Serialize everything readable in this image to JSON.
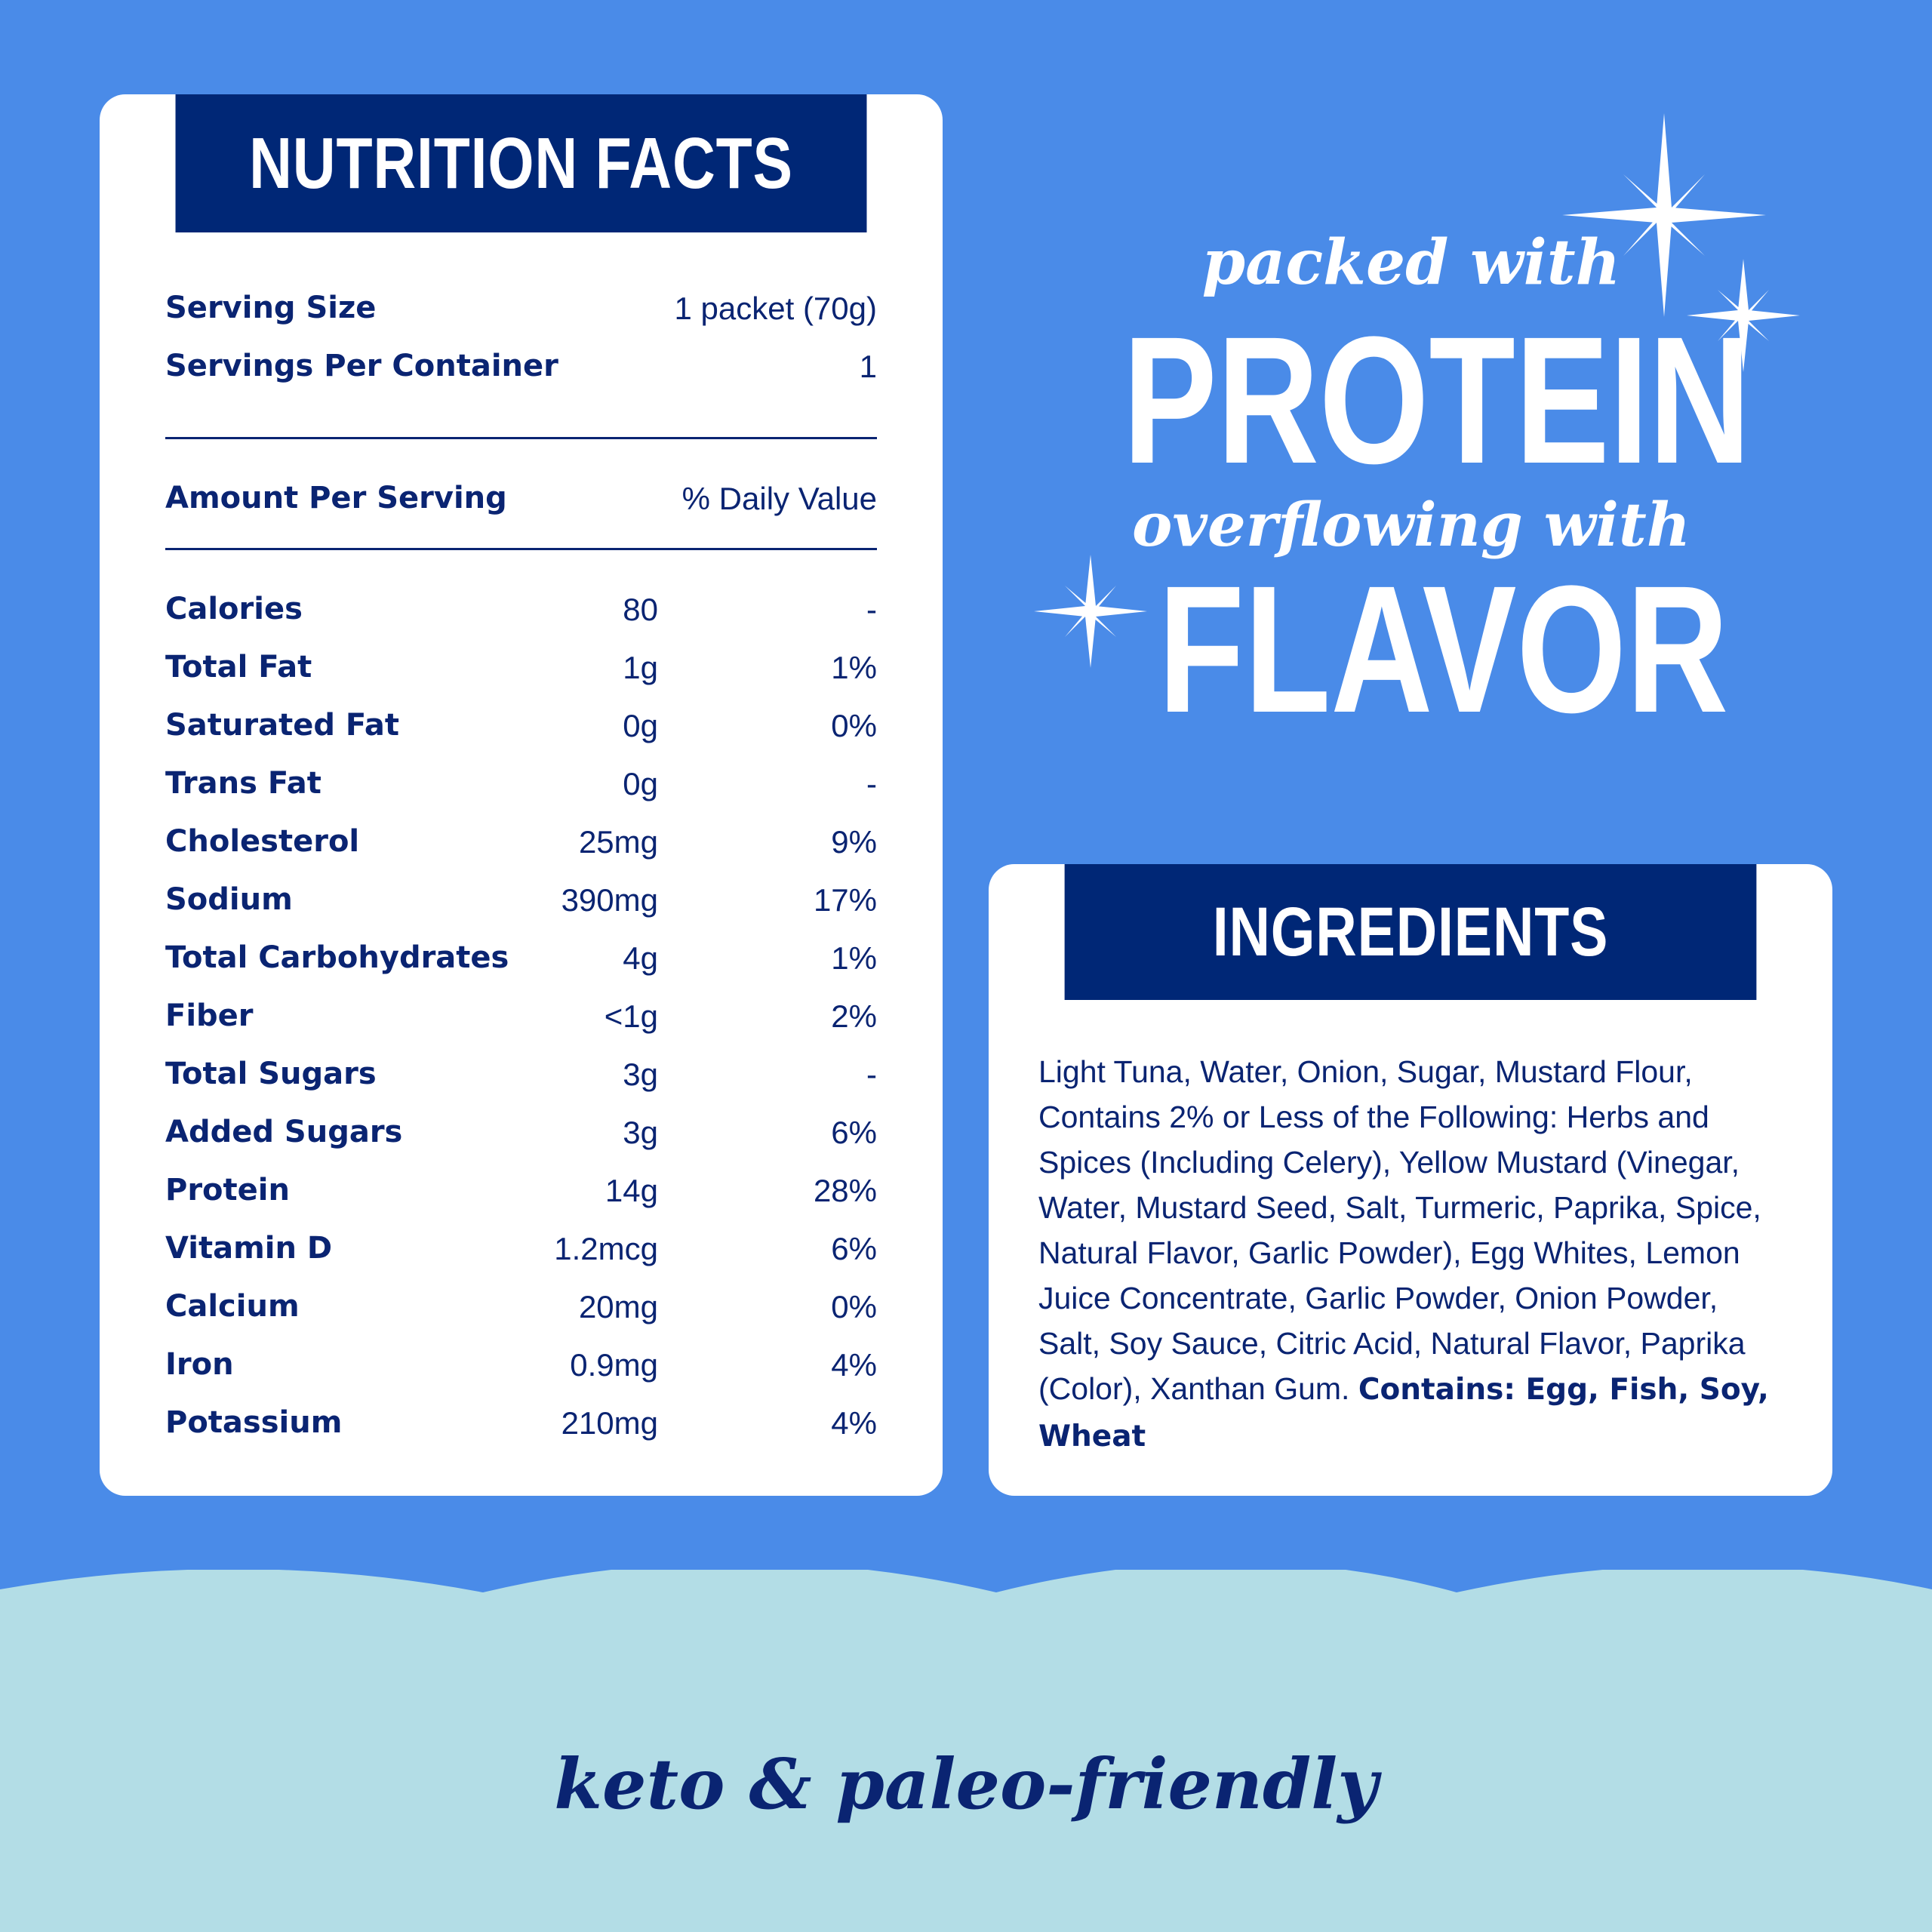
{
  "nutrition": {
    "title": "NUTRITION FACTS",
    "serving_size_label": "Serving Size",
    "serving_size_value": "1 packet (70g)",
    "servings_label": "Servings Per Container",
    "servings_value": "1",
    "amount_label": "Amount Per Serving",
    "dv_label": "% Daily Value",
    "rows": [
      {
        "label": "Calories",
        "amount": "80",
        "dv": "-"
      },
      {
        "label": "Total Fat",
        "amount": "1g",
        "dv": "1%"
      },
      {
        "label": "Saturated Fat",
        "amount": "0g",
        "dv": "0%"
      },
      {
        "label": "Trans Fat",
        "amount": "0g",
        "dv": "-"
      },
      {
        "label": "Cholesterol",
        "amount": "25mg",
        "dv": "9%"
      },
      {
        "label": "Sodium",
        "amount": "390mg",
        "dv": "17%"
      },
      {
        "label": "Total Carbohydrates",
        "amount": "4g",
        "dv": "1%"
      },
      {
        "label": "Fiber",
        "amount": "<1g",
        "dv": "2%"
      },
      {
        "label": "Total Sugars",
        "amount": "3g",
        "dv": "-"
      },
      {
        "label": "Added Sugars",
        "amount": "3g",
        "dv": "6%"
      },
      {
        "label": "Protein",
        "amount": "14g",
        "dv": "28%"
      },
      {
        "label": "Vitamin D",
        "amount": "1.2mcg",
        "dv": "6%"
      },
      {
        "label": "Calcium",
        "amount": "20mg",
        "dv": "0%"
      },
      {
        "label": "Iron",
        "amount": "0.9mg",
        "dv": "4%"
      },
      {
        "label": "Potassium",
        "amount": "210mg",
        "dv": "4%"
      }
    ]
  },
  "ingredients": {
    "title": "INGREDIENTS",
    "text": "Light Tuna, Water, Onion, Sugar, Mustard Flour, Contains 2% or Less of the Following: Herbs and Spices (Including Celery), Yellow Mustard (Vinegar, Water, Mustard Seed, Salt, Turmeric, Paprika, Spice, Natural Flavor, Garlic Powder), Egg Whites, Lemon Juice Concentrate, Garlic Powder, Onion Powder, Salt, Soy Sauce, Citric Acid, Natural Flavor, Paprika (Color), Xanthan Gum.",
    "allergens": "Contains: Egg, Fish, Soy, Wheat"
  },
  "headline": {
    "line1": "packed with",
    "line2": "PROTEIN",
    "line3": "overflowing with",
    "line4": "FLAVOR"
  },
  "footer": {
    "tagline": "keto & paleo-friendly"
  },
  "colors": {
    "background_blue": "#4a8be8",
    "navy": "#002776",
    "light_blue": "#b3dde6",
    "white": "#ffffff"
  },
  "icons": [
    "sparkle-star-icon"
  ]
}
